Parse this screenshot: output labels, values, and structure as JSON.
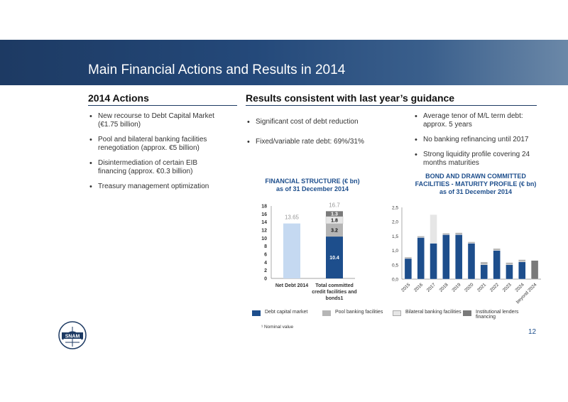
{
  "header": {
    "title": "Main Financial Actions and Results in 2014"
  },
  "left": {
    "heading": "2014 Actions",
    "bullets": [
      "New recourse to Debt Capital Market (€1.75 billion)",
      "Pool and bilateral banking facilities renegotiation (approx. €5 billion)",
      "Disintermediation of certain EIB financing  (approx. €0.3 billion)",
      "Treasury management optimization"
    ]
  },
  "right": {
    "heading": "Results consistent with last year’s guidance",
    "bullets_mid": [
      "Significant cost of debt reduction",
      "Fixed/variable rate debt: 69%/31%"
    ],
    "bullets_right": [
      "Average tenor of M/L term debt: approx. 5 years",
      "No banking refinancing until 2017",
      "Strong liquidity profile covering 24 months maturities"
    ]
  },
  "chart1_title": {
    "line1": "FINANCIAL STRUCTURE (€ bn)",
    "line2": "as of 31 December 2014"
  },
  "chart2_title": {
    "line1": "BOND AND DRAWN COMMITTED",
    "line2": "FACILITIES - MATURITY PROFILE (€ bn)",
    "line3": "as of 31 December 2014"
  },
  "legend": [
    {
      "label": "Debt capital market",
      "color": "#1d4e8c"
    },
    {
      "label": "Pool banking facilities",
      "color": "#b5b5b5"
    },
    {
      "label": "Bilateral banking facilities",
      "color": "#e6e6e6"
    },
    {
      "label": "Institutional lenders financing",
      "color": "#7a7a7a"
    }
  ],
  "footnote": "¹ Nominal value",
  "page_number": "12",
  "logo_text": "SNAM",
  "chart_data": [
    {
      "type": "bar",
      "title": "FINANCIAL STRUCTURE (€ bn) as of 31 December 2014",
      "categories": [
        "Net Debt 2014",
        "Total committed credit facilities and bonds1"
      ],
      "category_lines": [
        [
          "Net Debt 2014"
        ],
        [
          "Total committed",
          "credit facilities and",
          "bonds1"
        ]
      ],
      "yticks": [
        "0",
        "2",
        "4",
        "6",
        "8",
        "10",
        "12",
        "14",
        "16",
        "18"
      ],
      "ylim": [
        0,
        18
      ],
      "series": [
        {
          "name": "Net Debt",
          "values": [
            13.65,
            null
          ],
          "color": "#c5d9f1"
        },
        {
          "name": "Debt capital market",
          "values": [
            null,
            10.4
          ],
          "color": "#1d4e8c"
        },
        {
          "name": "Pool banking facilities",
          "values": [
            null,
            3.2
          ],
          "color": "#b5b5b5"
        },
        {
          "name": "Bilateral banking facilities",
          "values": [
            null,
            1.8
          ],
          "color": "#e6e6e6"
        },
        {
          "name": "Institutional lenders financing",
          "values": [
            null,
            1.3
          ],
          "color": "#7a7a7a"
        }
      ],
      "labels": {
        "net_debt": "13.65",
        "total": "16.7",
        "dcm": "10.4",
        "pool": "3.2",
        "bilateral": "1.8",
        "inst": "1.3"
      }
    },
    {
      "type": "bar",
      "title": "BOND AND DRAWN COMMITTED FACILITIES - MATURITY PROFILE (€ bn) as of 31 December 2014",
      "categories": [
        "2015",
        "2016",
        "2017",
        "2018",
        "2019",
        "2020",
        "2021",
        "2022",
        "2023",
        "2024",
        "beyond 2024"
      ],
      "yticks": [
        "0,0",
        "0,5",
        "1,0",
        "1,5",
        "2,0",
        "2,5"
      ],
      "ylim": [
        0,
        2.5
      ],
      "series": [
        {
          "name": "Debt capital market",
          "values": [
            0.72,
            1.45,
            1.25,
            1.55,
            1.55,
            1.25,
            0.5,
            1.0,
            0.5,
            0.6,
            0
          ],
          "color": "#1d4e8c"
        },
        {
          "name": "Pool banking facilities",
          "values": [
            0.05,
            0.05,
            0,
            0.05,
            0.07,
            0.05,
            0.1,
            0.07,
            0.08,
            0.08,
            0
          ],
          "color": "#b5b5b5"
        },
        {
          "name": "Bilateral banking facilities",
          "values": [
            0,
            0,
            1.0,
            0,
            0,
            0,
            0,
            0,
            0,
            0,
            0
          ],
          "color": "#e6e6e6"
        },
        {
          "name": "Institutional lenders financing",
          "values": [
            0,
            0,
            0,
            0,
            0,
            0,
            0,
            0,
            0,
            0,
            0.65
          ],
          "color": "#7a7a7a"
        }
      ]
    }
  ]
}
